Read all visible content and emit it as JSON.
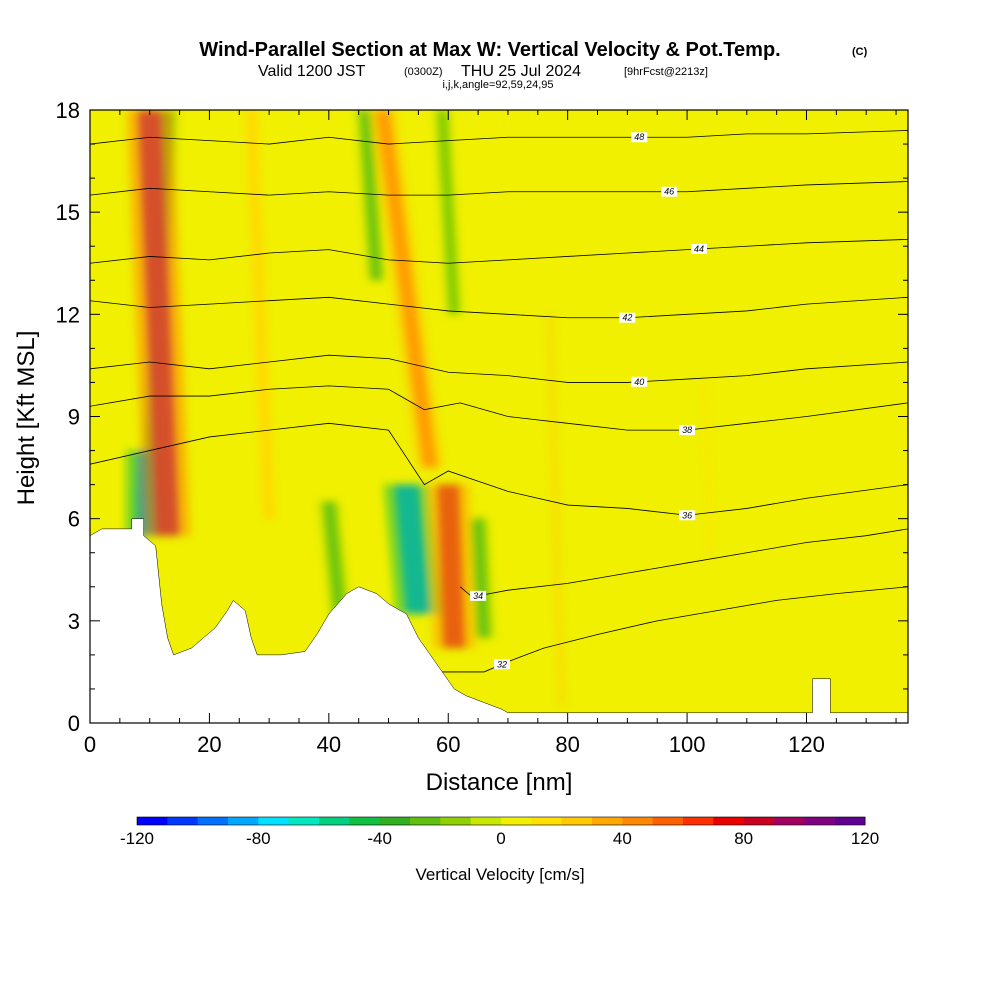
{
  "title": {
    "main": "Wind-Parallel Section at Max W: Vertical Velocity & Pot.Temp.",
    "main_unit": "(C)",
    "valid_prefix": "Valid 1200 JST",
    "valid_utc": "(0300Z)",
    "valid_date": "THU 25 Jul 2024",
    "fcst": "[9hrFcst@2213z]",
    "params": "i,j,k,angle=92,59,24,95"
  },
  "chart_data": {
    "type": "heatmap",
    "xlabel": "Distance [nm]",
    "ylabel": "Height [Kft MSL]",
    "xlim": [
      0,
      137
    ],
    "ylim": [
      0,
      18
    ],
    "x_ticks": [
      0,
      20,
      40,
      60,
      80,
      100,
      120
    ],
    "y_ticks": [
      0,
      3,
      6,
      9,
      12,
      15,
      18
    ],
    "background_value_cm_s": 5,
    "colorbar": {
      "label": "Vertical Velocity [cm/s]",
      "min": -120,
      "max": 120,
      "ticks": [
        -120,
        -80,
        -40,
        0,
        40,
        80,
        120
      ],
      "colors": [
        "#0000ff",
        "#0038ff",
        "#0070ff",
        "#00a8ff",
        "#00e0ff",
        "#00e8c0",
        "#00d080",
        "#10c040",
        "#30b020",
        "#60c010",
        "#90d000",
        "#c8e800",
        "#f0f000",
        "#ffe000",
        "#ffc800",
        "#ffa800",
        "#ff8800",
        "#ff6000",
        "#ff3000",
        "#e80000",
        "#c80020",
        "#a00060",
        "#800080",
        "#600090"
      ]
    },
    "updraft_features": [
      {
        "x_top": 10,
        "x_bottom": 13,
        "top": 18,
        "bottom": 5.5,
        "peak_cm_s": 90
      },
      {
        "x_top": 49,
        "x_bottom": 57,
        "top": 18,
        "bottom": 7.5,
        "peak_cm_s": 55
      },
      {
        "x_top": 60,
        "x_bottom": 61,
        "top": 7,
        "bottom": 2.2,
        "peak_cm_s": 85
      },
      {
        "x_top": 27,
        "x_bottom": 30,
        "top": 18,
        "bottom": 6,
        "peak_cm_s": 25
      },
      {
        "x_top": 77,
        "x_bottom": 79,
        "top": 12,
        "bottom": 0.5,
        "peak_cm_s": 22
      },
      {
        "x_top": 103,
        "x_bottom": 104,
        "top": 10,
        "bottom": 5,
        "peak_cm_s": 18
      }
    ],
    "downdraft_features": [
      {
        "x_top": 13,
        "x_bottom": 10,
        "top": 18,
        "bottom": 6.5,
        "peak_cm_s": -40
      },
      {
        "x_top": 10,
        "x_bottom": 10,
        "top": 8,
        "bottom": 5.5,
        "peak_cm_s": -95
      },
      {
        "x_top": 53,
        "x_bottom": 55,
        "top": 7,
        "bottom": 3.2,
        "peak_cm_s": -90
      },
      {
        "x_top": 40,
        "x_bottom": 42,
        "top": 6.5,
        "bottom": 3,
        "peak_cm_s": -40
      },
      {
        "x_top": 65,
        "x_bottom": 66,
        "top": 6,
        "bottom": 2.5,
        "peak_cm_s": -40
      },
      {
        "x_top": 46,
        "x_bottom": 48,
        "top": 18,
        "bottom": 13,
        "peak_cm_s": -35
      },
      {
        "x_top": 59,
        "x_bottom": 61,
        "top": 18,
        "bottom": 12,
        "peak_cm_s": -30
      }
    ],
    "terrain_profile": [
      {
        "x": 0,
        "h": 5.5
      },
      {
        "x": 2,
        "h": 5.7
      },
      {
        "x": 7,
        "h": 5.7
      },
      {
        "x": 7,
        "h": 6
      },
      {
        "x": 9,
        "h": 6
      },
      {
        "x": 9,
        "h": 5.5
      },
      {
        "x": 11,
        "h": 5.2
      },
      {
        "x": 12,
        "h": 3.5
      },
      {
        "x": 13,
        "h": 2.5
      },
      {
        "x": 14,
        "h": 2
      },
      {
        "x": 17,
        "h": 2.2
      },
      {
        "x": 19,
        "h": 2.5
      },
      {
        "x": 21,
        "h": 2.8
      },
      {
        "x": 23,
        "h": 3.3
      },
      {
        "x": 24,
        "h": 3.6
      },
      {
        "x": 26,
        "h": 3.3
      },
      {
        "x": 27,
        "h": 2.5
      },
      {
        "x": 28,
        "h": 2
      },
      {
        "x": 32,
        "h": 2
      },
      {
        "x": 36,
        "h": 2.1
      },
      {
        "x": 38,
        "h": 2.6
      },
      {
        "x": 40,
        "h": 3.2
      },
      {
        "x": 43,
        "h": 3.8
      },
      {
        "x": 45,
        "h": 4
      },
      {
        "x": 48,
        "h": 3.8
      },
      {
        "x": 50,
        "h": 3.5
      },
      {
        "x": 53,
        "h": 3.2
      },
      {
        "x": 55,
        "h": 2.5
      },
      {
        "x": 57,
        "h": 2
      },
      {
        "x": 59,
        "h": 1.5
      },
      {
        "x": 61,
        "h": 1
      },
      {
        "x": 63,
        "h": 0.8
      },
      {
        "x": 66,
        "h": 0.6
      },
      {
        "x": 69,
        "h": 0.4
      },
      {
        "x": 70,
        "h": 0.3
      },
      {
        "x": 121,
        "h": 0.3
      },
      {
        "x": 121,
        "h": 1.3
      },
      {
        "x": 124,
        "h": 1.3
      },
      {
        "x": 124,
        "h": 0.3
      },
      {
        "x": 137,
        "h": 0.3
      }
    ],
    "isentropes": [
      {
        "theta": 32,
        "label_x": 69,
        "points": [
          [
            57,
            1.5
          ],
          [
            66,
            1.5
          ],
          [
            70,
            1.8
          ],
          [
            76,
            2.2
          ],
          [
            85,
            2.6
          ],
          [
            95,
            3.0
          ],
          [
            105,
            3.3
          ],
          [
            115,
            3.6
          ],
          [
            125,
            3.8
          ],
          [
            137,
            4.0
          ]
        ]
      },
      {
        "theta": 34,
        "label_x": 65,
        "points": [
          [
            62,
            4
          ],
          [
            64,
            3.7
          ],
          [
            70,
            3.9
          ],
          [
            80,
            4.1
          ],
          [
            90,
            4.4
          ],
          [
            100,
            4.7
          ],
          [
            110,
            5.0
          ],
          [
            120,
            5.3
          ],
          [
            130,
            5.5
          ],
          [
            137,
            5.7
          ]
        ]
      },
      {
        "theta": 36,
        "label_x": 100,
        "points": [
          [
            0,
            7.6
          ],
          [
            10,
            8.0
          ],
          [
            20,
            8.4
          ],
          [
            30,
            8.6
          ],
          [
            40,
            8.8
          ],
          [
            50,
            8.6
          ],
          [
            56,
            7.0
          ],
          [
            60,
            7.4
          ],
          [
            70,
            6.8
          ],
          [
            80,
            6.4
          ],
          [
            90,
            6.3
          ],
          [
            100,
            6.1
          ],
          [
            110,
            6.3
          ],
          [
            120,
            6.6
          ],
          [
            137,
            7.0
          ]
        ]
      },
      {
        "theta": 38,
        "label_x": 100,
        "points": [
          [
            0,
            9.3
          ],
          [
            10,
            9.6
          ],
          [
            20,
            9.6
          ],
          [
            30,
            9.8
          ],
          [
            40,
            9.9
          ],
          [
            50,
            9.8
          ],
          [
            56,
            9.2
          ],
          [
            62,
            9.4
          ],
          [
            70,
            9.0
          ],
          [
            80,
            8.8
          ],
          [
            90,
            8.6
          ],
          [
            100,
            8.6
          ],
          [
            110,
            8.8
          ],
          [
            120,
            9.0
          ],
          [
            137,
            9.4
          ]
        ]
      },
      {
        "theta": 40,
        "label_x": 92,
        "points": [
          [
            0,
            10.4
          ],
          [
            10,
            10.6
          ],
          [
            20,
            10.4
          ],
          [
            30,
            10.6
          ],
          [
            40,
            10.8
          ],
          [
            50,
            10.7
          ],
          [
            60,
            10.3
          ],
          [
            70,
            10.2
          ],
          [
            80,
            10.0
          ],
          [
            90,
            10.0
          ],
          [
            100,
            10.1
          ],
          [
            110,
            10.2
          ],
          [
            120,
            10.4
          ],
          [
            137,
            10.6
          ]
        ]
      },
      {
        "theta": 42,
        "label_x": 90,
        "points": [
          [
            0,
            12.4
          ],
          [
            10,
            12.2
          ],
          [
            20,
            12.3
          ],
          [
            30,
            12.4
          ],
          [
            40,
            12.5
          ],
          [
            50,
            12.3
          ],
          [
            60,
            12.1
          ],
          [
            70,
            12.0
          ],
          [
            80,
            11.9
          ],
          [
            90,
            11.9
          ],
          [
            100,
            12.0
          ],
          [
            110,
            12.1
          ],
          [
            120,
            12.3
          ],
          [
            137,
            12.5
          ]
        ]
      },
      {
        "theta": 44,
        "label_x": 102,
        "points": [
          [
            0,
            13.5
          ],
          [
            10,
            13.7
          ],
          [
            20,
            13.6
          ],
          [
            30,
            13.8
          ],
          [
            40,
            13.9
          ],
          [
            50,
            13.6
          ],
          [
            60,
            13.5
          ],
          [
            70,
            13.6
          ],
          [
            80,
            13.7
          ],
          [
            90,
            13.8
          ],
          [
            100,
            13.9
          ],
          [
            110,
            14.0
          ],
          [
            120,
            14.1
          ],
          [
            137,
            14.2
          ]
        ]
      },
      {
        "theta": 46,
        "label_x": 97,
        "points": [
          [
            0,
            15.5
          ],
          [
            10,
            15.7
          ],
          [
            20,
            15.6
          ],
          [
            30,
            15.5
          ],
          [
            40,
            15.6
          ],
          [
            50,
            15.5
          ],
          [
            60,
            15.5
          ],
          [
            70,
            15.6
          ],
          [
            80,
            15.6
          ],
          [
            90,
            15.6
          ],
          [
            100,
            15.6
          ],
          [
            110,
            15.7
          ],
          [
            120,
            15.8
          ],
          [
            137,
            15.9
          ]
        ]
      },
      {
        "theta": 48,
        "label_x": 92,
        "points": [
          [
            0,
            17.0
          ],
          [
            10,
            17.2
          ],
          [
            20,
            17.1
          ],
          [
            30,
            17.0
          ],
          [
            40,
            17.2
          ],
          [
            50,
            17.0
          ],
          [
            60,
            17.1
          ],
          [
            70,
            17.2
          ],
          [
            80,
            17.2
          ],
          [
            90,
            17.2
          ],
          [
            100,
            17.2
          ],
          [
            110,
            17.3
          ],
          [
            120,
            17.3
          ],
          [
            137,
            17.4
          ]
        ]
      }
    ]
  }
}
